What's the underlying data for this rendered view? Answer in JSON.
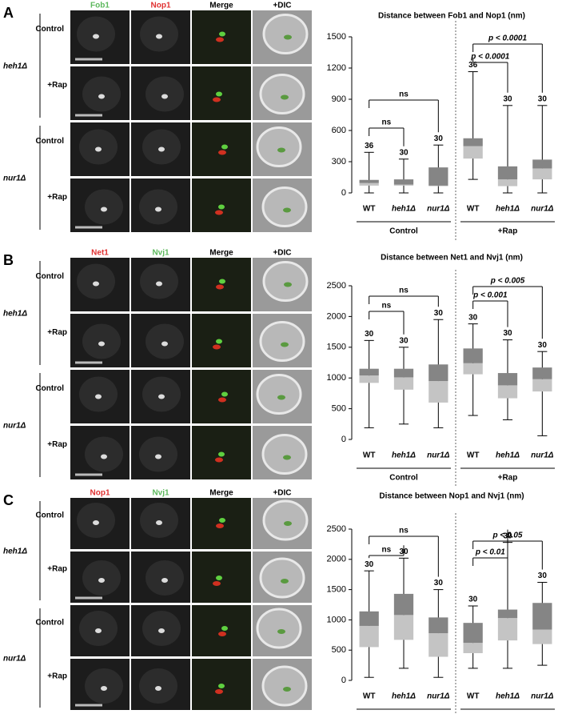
{
  "panels": [
    {
      "letter": "A",
      "channels": [
        {
          "name": "Fob1",
          "color": "#5cb85c"
        },
        {
          "name": "Nop1",
          "color": "#e03030"
        },
        {
          "name": "Merge",
          "color": "#000000"
        },
        {
          "name": "+DIC",
          "color": "#000000"
        }
      ],
      "strains": [
        "heh1Δ",
        "nur1Δ"
      ],
      "conditions": [
        "Control",
        "+Rap"
      ]
    },
    {
      "letter": "B",
      "channels": [
        {
          "name": "Net1",
          "color": "#e03030"
        },
        {
          "name": "Nvj1",
          "color": "#5cb85c"
        },
        {
          "name": "Merge",
          "color": "#000000"
        },
        {
          "name": "+DIC",
          "color": "#000000"
        }
      ],
      "strains": [
        "heh1Δ",
        "nur1Δ"
      ],
      "conditions": [
        "Control",
        "+Rap"
      ]
    },
    {
      "letter": "C",
      "channels": [
        {
          "name": "Nop1",
          "color": "#e03030"
        },
        {
          "name": "Nvj1",
          "color": "#5cb85c"
        },
        {
          "name": "Merge",
          "color": "#000000"
        },
        {
          "name": "+DIC",
          "color": "#000000"
        }
      ],
      "strains": [
        "heh1Δ",
        "nur1Δ"
      ],
      "conditions": [
        "Control",
        "+Rap"
      ]
    }
  ],
  "chart_data": [
    {
      "type": "box",
      "title": "Distance between Fob1 and Nop1 (nm)",
      "categories": [
        "WT",
        "heh1Δ",
        "nur1Δ",
        "WT",
        "heh1Δ",
        "nur1Δ"
      ],
      "groups": [
        "Control",
        "+Rap"
      ],
      "min": [
        0,
        0,
        0,
        130,
        0,
        0
      ],
      "q1": [
        70,
        70,
        65,
        330,
        65,
        130
      ],
      "median": [
        95,
        80,
        70,
        450,
        130,
        235
      ],
      "q3": [
        125,
        130,
        245,
        525,
        255,
        320
      ],
      "max": [
        390,
        325,
        460,
        1165,
        840,
        840
      ],
      "n": [
        36,
        30,
        30,
        36,
        30,
        30
      ],
      "comparisons": [
        "ns",
        "ns",
        "p < 0.0001",
        "p < 0.0001"
      ],
      "colors": {
        "lower": "#c4c4c4",
        "upper": "#858585"
      },
      "ylim": [
        0,
        1500
      ],
      "yticks": [
        0,
        300,
        600,
        900,
        1200,
        1500
      ]
    },
    {
      "type": "box",
      "title": "Distance between Net1 and Nvj1 (nm)",
      "categories": [
        "WT",
        "heh1Δ",
        "nur1Δ",
        "WT",
        "heh1Δ",
        "nur1Δ"
      ],
      "groups": [
        "Control",
        "+Rap"
      ],
      "min": [
        190,
        250,
        190,
        390,
        320,
        60
      ],
      "q1": [
        920,
        810,
        600,
        1060,
        670,
        780
      ],
      "median": [
        1040,
        1010,
        950,
        1240,
        880,
        980
      ],
      "q3": [
        1150,
        1150,
        1220,
        1480,
        1080,
        1170
      ],
      "max": [
        1610,
        1500,
        1950,
        1880,
        1620,
        1430
      ],
      "n": [
        30,
        30,
        30,
        30,
        30,
        30
      ],
      "comparisons": [
        "ns",
        "ns",
        "p < 0.001",
        "p < 0.005"
      ],
      "colors": {
        "lower": "#c4c4c4",
        "upper": "#858585"
      },
      "ylim": [
        0,
        2500
      ],
      "yticks": [
        0,
        500,
        1000,
        1500,
        2000,
        2500
      ]
    },
    {
      "type": "box",
      "title": "Distance between Nop1 and Nvj1  (nm)",
      "categories": [
        "WT",
        "heh1Δ",
        "nur1Δ",
        "WT",
        "heh1Δ",
        "nur1Δ"
      ],
      "groups": [
        "Control",
        "+Rap"
      ],
      "min": [
        50,
        200,
        50,
        200,
        200,
        250
      ],
      "q1": [
        550,
        670,
        390,
        450,
        660,
        600
      ],
      "median": [
        900,
        1080,
        780,
        620,
        1030,
        840
      ],
      "q3": [
        1140,
        1430,
        1040,
        950,
        1170,
        1280
      ],
      "max": [
        1810,
        2020,
        1500,
        1230,
        2280,
        1620
      ],
      "n": [
        30,
        30,
        30,
        30,
        30,
        30
      ],
      "comparisons": [
        "ns",
        "ns",
        "p < 0.01",
        "p < 0.05"
      ],
      "colors": {
        "lower": "#c4c4c4",
        "upper": "#858585"
      },
      "ylim": [
        0,
        2500
      ],
      "yticks": [
        0,
        500,
        1000,
        1500,
        2000,
        2500
      ]
    }
  ]
}
